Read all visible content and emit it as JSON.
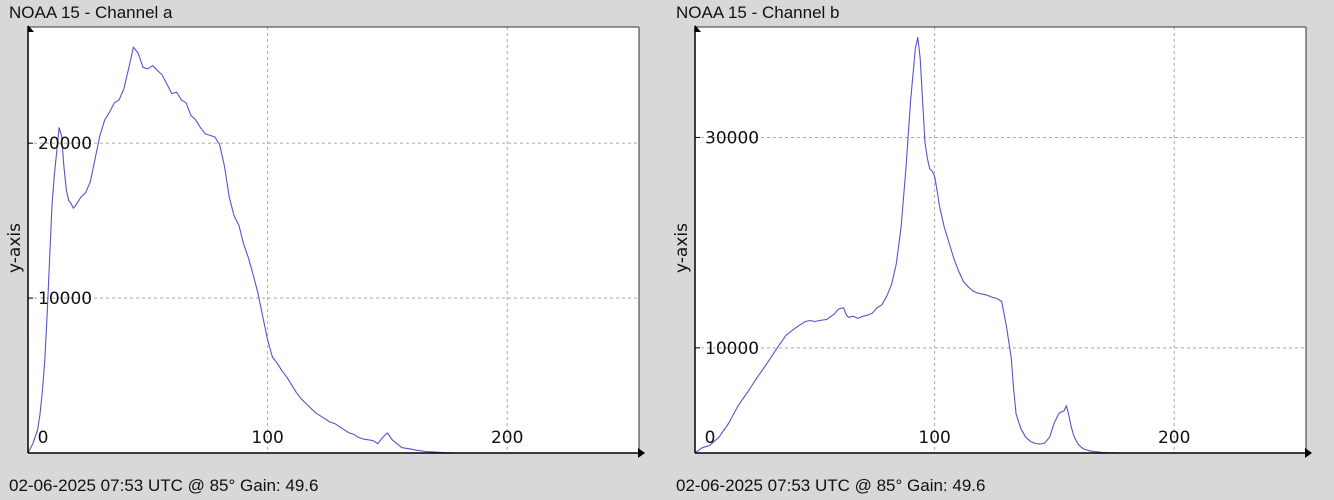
{
  "chart_data": [
    {
      "type": "line",
      "title": "NOAA 15 - Channel a",
      "footer": "02-06-2025 07:53 UTC @ 85° Gain: 49.6",
      "ylabel": "y-axis",
      "xlabel": "",
      "xlim": [
        0,
        255
      ],
      "ylim": [
        0,
        27500
      ],
      "xticks": [
        0,
        100,
        200
      ],
      "yticks": [
        10000,
        20000
      ],
      "grid": true,
      "line_color": "#5555cc",
      "x": [
        0,
        2,
        4,
        5,
        6,
        7,
        8,
        9,
        10,
        11,
        12,
        13,
        14,
        15,
        16,
        17,
        18,
        19,
        20,
        22,
        24,
        26,
        28,
        30,
        32,
        34,
        36,
        38,
        40,
        42,
        44,
        46,
        48,
        50,
        52,
        54,
        56,
        58,
        60,
        62,
        64,
        66,
        68,
        70,
        72,
        74,
        76,
        78,
        80,
        82,
        84,
        86,
        88,
        90,
        92,
        94,
        96,
        98,
        100,
        102,
        104,
        106,
        108,
        110,
        112,
        114,
        116,
        118,
        120,
        122,
        124,
        126,
        128,
        130,
        132,
        134,
        136,
        138,
        140,
        142,
        144,
        146,
        148,
        150,
        152,
        154,
        156,
        158,
        160,
        162,
        164,
        166,
        168,
        170,
        172,
        174,
        176,
        178
      ],
      "y": [
        0,
        600,
        1500,
        2500,
        4000,
        6000,
        9000,
        12500,
        16000,
        18000,
        19500,
        21000,
        20500,
        18500,
        17000,
        16300,
        16100,
        15800,
        16000,
        16500,
        16800,
        17500,
        19000,
        20500,
        21500,
        22000,
        22600,
        22800,
        23500,
        24800,
        26200,
        25800,
        24900,
        24800,
        25000,
        24700,
        24400,
        23800,
        23200,
        23300,
        22800,
        22600,
        21800,
        21500,
        21000,
        20600,
        20500,
        20400,
        19900,
        18500,
        16500,
        15300,
        14700,
        13500,
        12600,
        11500,
        10300,
        8800,
        7300,
        6200,
        5800,
        5300,
        4900,
        4400,
        3900,
        3500,
        3200,
        2900,
        2600,
        2400,
        2200,
        2000,
        1900,
        1700,
        1500,
        1300,
        1200,
        1000,
        900,
        850,
        800,
        600,
        1000,
        1300,
        850,
        600,
        350,
        300,
        250,
        180,
        140,
        100,
        80,
        60,
        40,
        20,
        10,
        0
      ]
    },
    {
      "type": "line",
      "title": "NOAA 15 - Channel b",
      "footer": "02-06-2025 07:53 UTC @ 85° Gain: 49.6",
      "ylabel": "y-axis",
      "xlabel": "",
      "xlim": [
        0,
        255
      ],
      "ylim": [
        0,
        40500
      ],
      "xticks": [
        0,
        100,
        200
      ],
      "yticks": [
        10000,
        30000
      ],
      "grid": true,
      "line_color": "#5555cc",
      "x": [
        0,
        3,
        6,
        10,
        14,
        18,
        22,
        26,
        30,
        34,
        38,
        42,
        46,
        48,
        50,
        52,
        55,
        58,
        60,
        62,
        63,
        64,
        66,
        68,
        70,
        72,
        74,
        76,
        78,
        80,
        82,
        84,
        86,
        88,
        90,
        92,
        93,
        94,
        95,
        96,
        97,
        98,
        99,
        100,
        101,
        102,
        104,
        106,
        108,
        110,
        112,
        114,
        116,
        118,
        120,
        122,
        124,
        126,
        128,
        130,
        132,
        133,
        134,
        136,
        138,
        140,
        142,
        144,
        146,
        148,
        150,
        152,
        154,
        155,
        156,
        157,
        158,
        159,
        160,
        162,
        164,
        166,
        168,
        170,
        172,
        174,
        176,
        178,
        180,
        182,
        184
      ],
      "y": [
        0,
        500,
        700,
        1500,
        2800,
        4500,
        5800,
        7200,
        8500,
        9900,
        11200,
        11900,
        12500,
        12600,
        12500,
        12600,
        12700,
        13200,
        13700,
        13800,
        13200,
        12900,
        13000,
        12800,
        13000,
        13100,
        13300,
        13800,
        14100,
        14900,
        16000,
        18000,
        21500,
        27000,
        33500,
        38500,
        39500,
        37500,
        33500,
        29500,
        28000,
        27000,
        26800,
        26300,
        25000,
        23500,
        21500,
        20000,
        18500,
        17300,
        16300,
        15800,
        15400,
        15200,
        15100,
        15000,
        14800,
        14700,
        14400,
        12000,
        9000,
        6000,
        3700,
        2300,
        1500,
        1100,
        900,
        850,
        950,
        1500,
        2900,
        3800,
        4000,
        4500,
        3600,
        2500,
        1700,
        1200,
        800,
        400,
        250,
        150,
        100,
        60,
        30,
        15,
        8,
        4,
        2,
        0,
        0
      ]
    }
  ]
}
